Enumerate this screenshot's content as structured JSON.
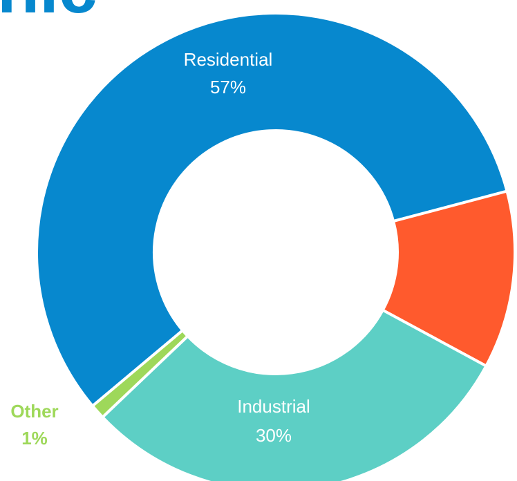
{
  "chart_data": {
    "type": "donut",
    "title": "nic",
    "categories": [
      "Residential",
      null,
      "Industrial",
      "Other"
    ],
    "values": [
      57,
      12,
      30,
      1
    ],
    "value_labels": [
      "57%",
      null,
      "30%",
      "1%"
    ],
    "colors": [
      "#0788ce",
      "#ff5a2d",
      "#5dcfc5",
      "#9ed85a"
    ]
  }
}
